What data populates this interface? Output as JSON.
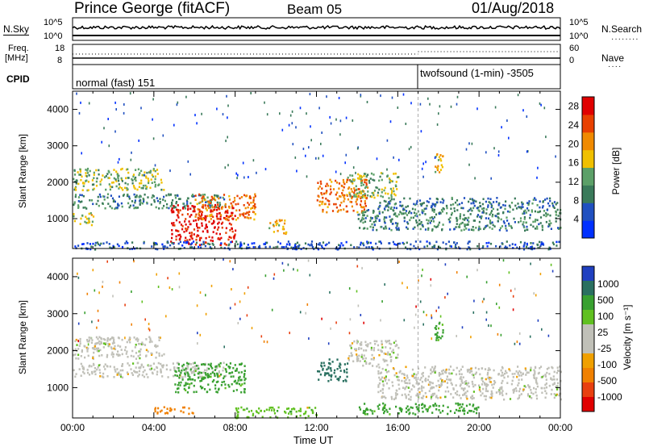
{
  "header": {
    "station": "Prince George (fitACF)",
    "beam": "Beam 05",
    "date": "01/Aug/2018"
  },
  "strip_labels": {
    "nsky": "N.Sky",
    "nsearch": "N.Search",
    "freq_top": "Freq.",
    "freq_unit": "[MHz]",
    "nave": "Nave",
    "cpid": "CPID",
    "nsky_top": "10^5",
    "nsky_bottom": "10^0",
    "freq_max": "18",
    "freq_min": "8",
    "nave_max": "60",
    "nave_min": "0"
  },
  "cpid": {
    "mode1": "normal (fast) 151",
    "mode2": "twofsound (1-min) -3505",
    "switch_time_hours": 17.0
  },
  "colors": {
    "power_scale": [
      "#0030ff",
      "#2050c0",
      "#3a7a5a",
      "#5ca068",
      "#f0c000",
      "#f08a00",
      "#e84000",
      "#e00000"
    ],
    "velocity_scale": [
      "#2040c0",
      "#2a7060",
      "#38a030",
      "#60c020",
      "#c0c0b8",
      "#c0c0b8",
      "#f0a000",
      "#f08000",
      "#e84010",
      "#e00000"
    ]
  },
  "chart_data": [
    {
      "type": "heatmap",
      "panel": "power",
      "ylabel": "Slant Range [km]",
      "ylim": [
        180,
        4500
      ],
      "yticks": [
        "1000",
        "2000",
        "3000",
        "4000"
      ],
      "xlim_hours": [
        0,
        24
      ],
      "colorbar_label": "Power [dB]",
      "colorbar_ticks": [
        "4",
        "8",
        "12",
        "16",
        "20",
        "24",
        "28"
      ],
      "colorbar_range": [
        0,
        30
      ],
      "features": [
        {
          "t0": 0.0,
          "t1": 4.5,
          "r0": 1800,
          "r1": 2400,
          "value": 14
        },
        {
          "t0": 0.0,
          "t1": 7.5,
          "r0": 1300,
          "r1": 1700,
          "value": 10
        },
        {
          "t0": 0.0,
          "t1": 1.0,
          "r0": 850,
          "r1": 1200,
          "value": 16
        },
        {
          "t0": 4.8,
          "t1": 8.0,
          "r0": 300,
          "r1": 1400,
          "value": 28
        },
        {
          "t0": 6.0,
          "t1": 9.0,
          "r0": 1000,
          "r1": 1700,
          "value": 22
        },
        {
          "t0": 9.5,
          "t1": 10.5,
          "r0": 600,
          "r1": 1000,
          "value": 18
        },
        {
          "t0": 12.0,
          "t1": 14.5,
          "r0": 1200,
          "r1": 2100,
          "value": 22
        },
        {
          "t0": 13.5,
          "t1": 16.0,
          "r0": 1600,
          "r1": 2300,
          "value": 14
        },
        {
          "t0": 14.0,
          "t1": 24.0,
          "r0": 700,
          "r1": 1300,
          "value": 10
        },
        {
          "t0": 15.0,
          "t1": 24.0,
          "r0": 1300,
          "r1": 1600,
          "value": 8
        },
        {
          "t0": 17.8,
          "t1": 18.2,
          "r0": 2300,
          "r1": 2800,
          "value": 18
        },
        {
          "t0": 0.0,
          "t1": 24.0,
          "r0": 180,
          "r1": 400,
          "value": 6
        }
      ]
    },
    {
      "type": "heatmap",
      "panel": "velocity",
      "ylabel": "Slant Range [km]",
      "xlabel": "Time UT",
      "ylim": [
        180,
        4500
      ],
      "yticks": [
        "1000",
        "2000",
        "3000",
        "4000"
      ],
      "xticks": [
        "00:00",
        "04:00",
        "08:00",
        "12:00",
        "16:00",
        "20:00",
        "00:00"
      ],
      "xlim_hours": [
        0,
        24
      ],
      "colorbar_label": "Velocity [m s⁻¹]",
      "colorbar_ticks": [
        "1000",
        "500",
        "100",
        "25",
        "-25",
        "-100",
        "-500",
        "-1000"
      ],
      "features": [
        {
          "t0": 0.0,
          "t1": 4.5,
          "r0": 1800,
          "r1": 2400,
          "value": 0
        },
        {
          "t0": 0.0,
          "t1": 7.5,
          "r0": 1300,
          "r1": 1700,
          "value": 0
        },
        {
          "t0": 5.0,
          "t1": 8.5,
          "r0": 900,
          "r1": 1700,
          "value": 150
        },
        {
          "t0": 4.0,
          "t1": 6.0,
          "r0": 300,
          "r1": 500,
          "value": -150
        },
        {
          "t0": 8.0,
          "t1": 12.0,
          "r0": 200,
          "r1": 500,
          "value": 50
        },
        {
          "t0": 12.0,
          "t1": 13.5,
          "r0": 1200,
          "r1": 1800,
          "value": 700
        },
        {
          "t0": 13.5,
          "t1": 16.0,
          "r0": 1600,
          "r1": 2300,
          "value": 0
        },
        {
          "t0": 15.0,
          "t1": 24.0,
          "r0": 700,
          "r1": 1600,
          "value": 0
        },
        {
          "t0": 17.8,
          "t1": 18.2,
          "r0": 2300,
          "r1": 2800,
          "value": 100
        },
        {
          "t0": 14.0,
          "t1": 20.0,
          "r0": 300,
          "r1": 600,
          "value": 120
        }
      ]
    }
  ]
}
